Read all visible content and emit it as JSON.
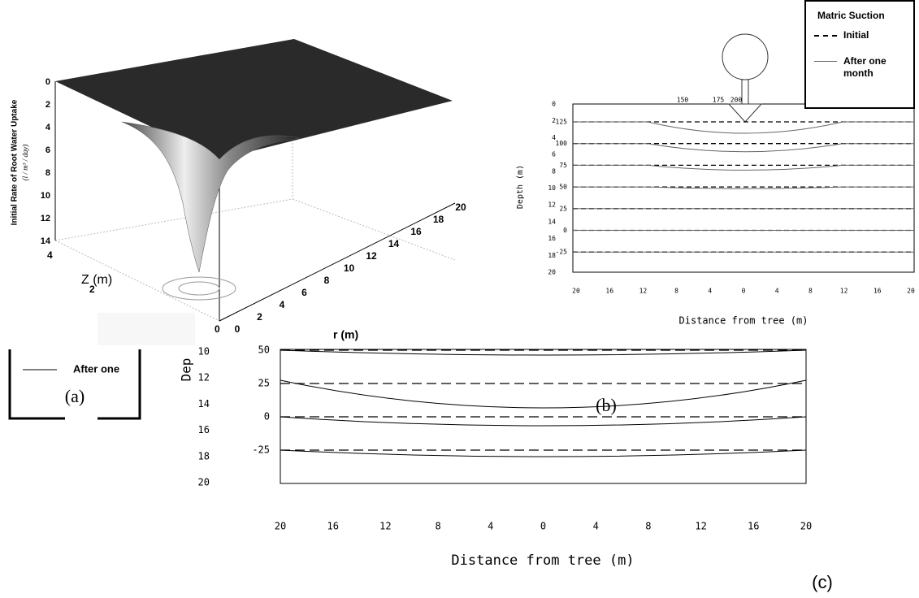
{
  "panel_a": {
    "label": "(a)",
    "y_axis_title": "Initial Rate of Root Water Uptake",
    "y_axis_units": "(l / m³ / day)",
    "z_ticks": [
      "0",
      "2",
      "4",
      "6",
      "8",
      "10",
      "12",
      "14"
    ],
    "depth_axis_title": "Z (m)",
    "depth_ticks": [
      "4",
      "2",
      "0"
    ],
    "r_axis_title": "r (m)",
    "r_ticks": [
      "0",
      "2",
      "4",
      "6",
      "8",
      "10",
      "12",
      "14",
      "16",
      "18",
      "20"
    ],
    "legend_fragment": "After one"
  },
  "panel_b": {
    "label": "(b)",
    "legend": {
      "title": "Matric Suction",
      "initial": "Initial",
      "after": "After one month"
    },
    "y_axis_title": "Depth (m)",
    "y_ticks": [
      "0",
      "2",
      "4",
      "6",
      "8",
      "10",
      "12",
      "14",
      "16",
      "18",
      "20"
    ],
    "suction_labels": [
      "125",
      "100",
      "75",
      "50",
      "25",
      "0",
      "-25"
    ],
    "top_labels": [
      "150",
      "175",
      "200"
    ],
    "x_ticks": [
      "20",
      "16",
      "12",
      "8",
      "4",
      "0",
      "4",
      "8",
      "12",
      "16",
      "20"
    ],
    "x_axis_title": "Distance from tree (m)"
  },
  "panel_c": {
    "label": "(c)",
    "y_axis_title": "Dep",
    "y_ticks": [
      "10",
      "12",
      "14",
      "16",
      "18",
      "20"
    ],
    "suction_labels": [
      "50",
      "25",
      "0",
      "-25"
    ],
    "x_ticks": [
      "20",
      "16",
      "12",
      "8",
      "4",
      "0",
      "4",
      "8",
      "12",
      "16",
      "20"
    ],
    "x_axis_title": "Distance from tree (m)"
  }
}
